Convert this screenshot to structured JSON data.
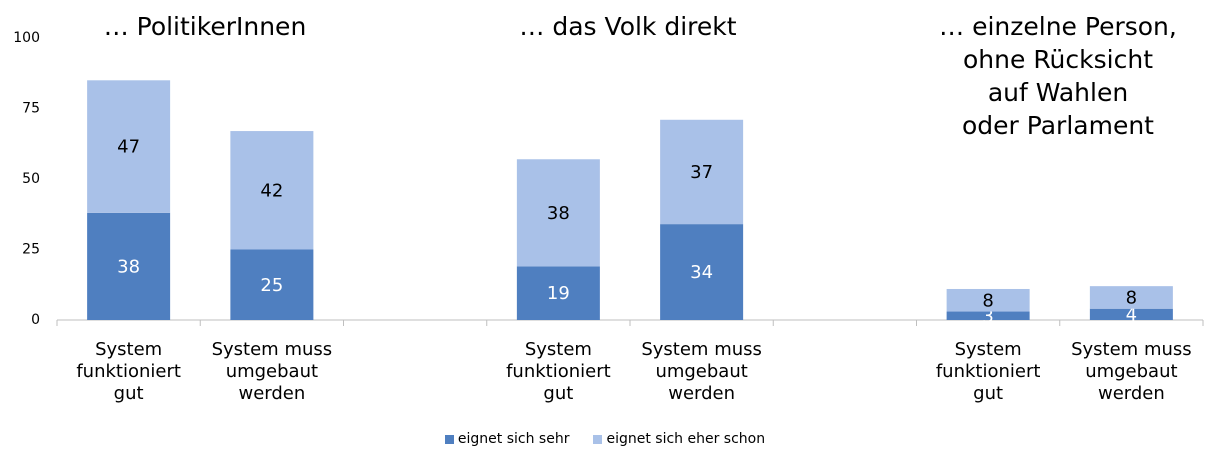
{
  "chart_data": {
    "type": "stacked_bar",
    "categories": [
      "System\nfunktioniert\ngut",
      "System muss\numgebaut\nwerden",
      null,
      "System\nfunktioniert\ngut",
      "System muss\numgebaut\nwerden",
      null,
      "System\nfunktioniert\ngut",
      "System muss\numgebaut\nwerden"
    ],
    "series": [
      {
        "name": "eignet sich sehr",
        "color": "#4f7fc0",
        "values": [
          38,
          25,
          null,
          19,
          34,
          null,
          3,
          4
        ]
      },
      {
        "name": "eignet sich eher schon",
        "color": "#a9c1e8",
        "values": [
          47,
          42,
          null,
          38,
          37,
          null,
          8,
          8
        ]
      }
    ],
    "annotations": [
      "… PolitikerInnen",
      "… das Volk direkt",
      "… einzelne Person,\nohne Rücksicht\nauf Wahlen\noder Parlament"
    ],
    "ylim": [
      0,
      100
    ],
    "yticks": [
      0,
      25,
      50,
      75,
      100
    ],
    "grid": false
  }
}
